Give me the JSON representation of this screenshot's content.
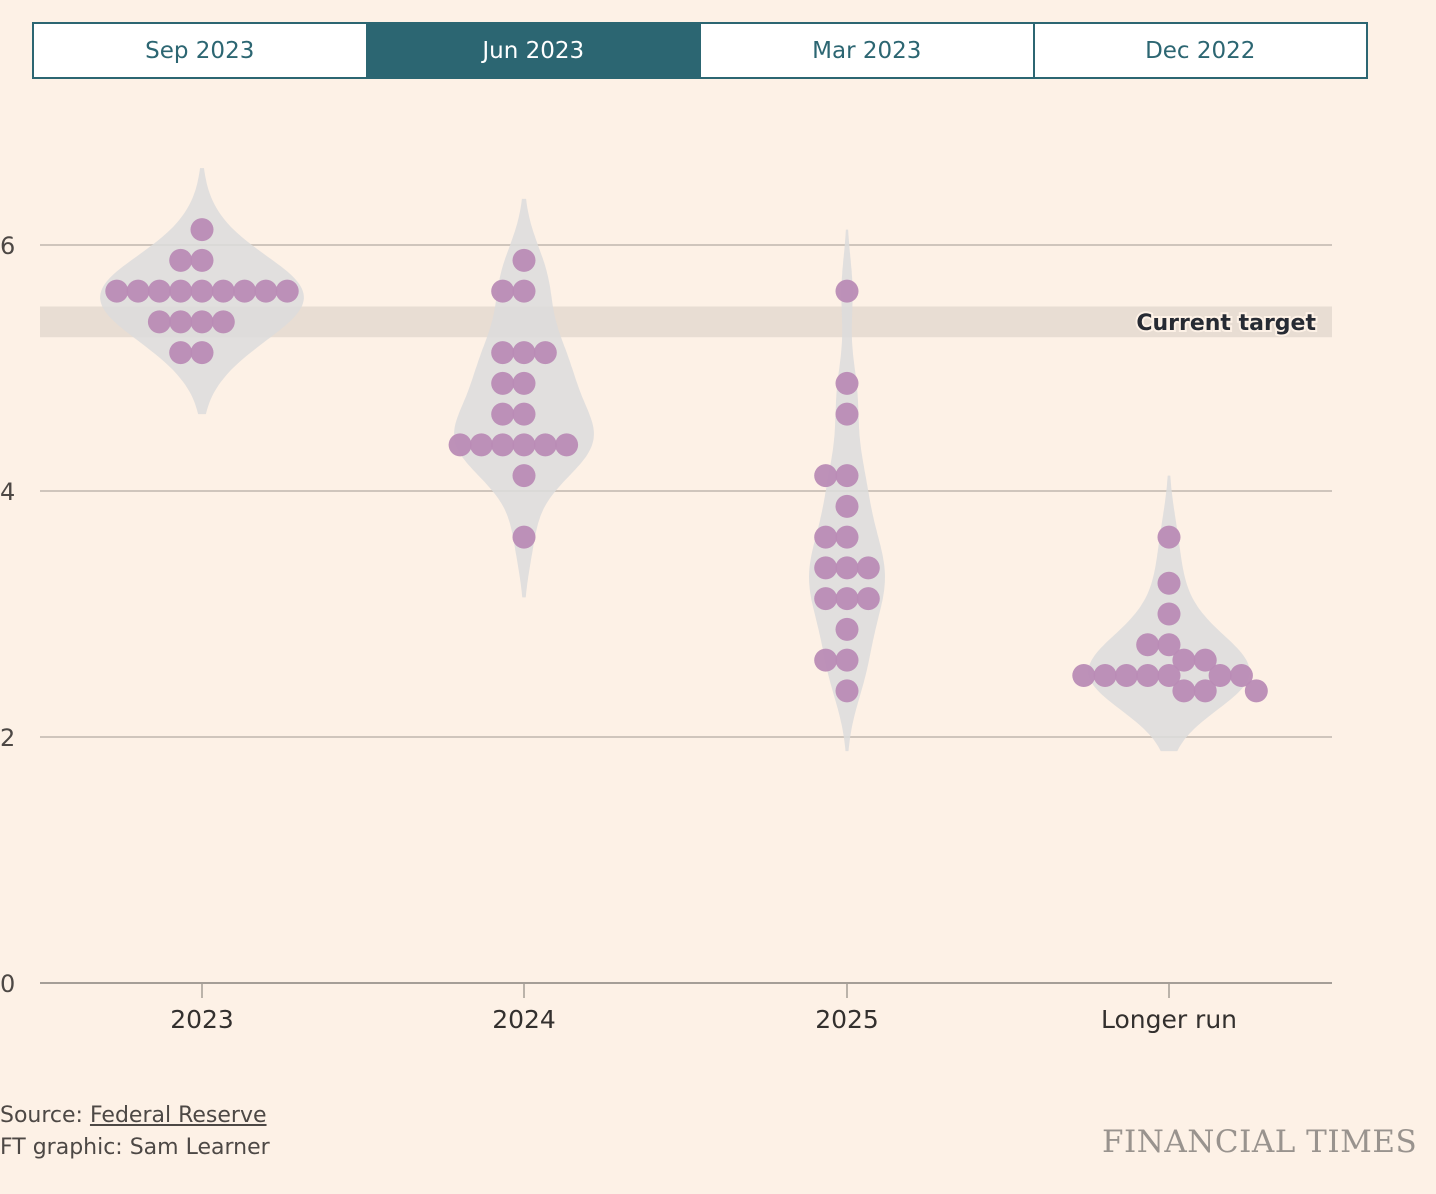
{
  "tabs": [
    {
      "label": "Sep 2023",
      "active": false
    },
    {
      "label": "Jun 2023",
      "active": true
    },
    {
      "label": "Mar 2023",
      "active": false
    },
    {
      "label": "Dec 2022",
      "active": false
    }
  ],
  "colors": {
    "accent": "#2c6672",
    "dot": "#b98bb5",
    "violin": "#dcdcdc",
    "target_band": "#e8ddd3",
    "background": "#fdf1e6"
  },
  "footer": {
    "source_prefix": "Source: ",
    "source_link": "Federal Reserve",
    "credit": "FT graphic: Sam Learner",
    "logo": "FINANCIAL TIMES"
  },
  "chart_data": {
    "type": "scatter",
    "subtype": "beeswarm-violin",
    "title": "",
    "xlabel": "",
    "ylabel": "",
    "categories": [
      "2023",
      "2024",
      "2025",
      "Longer run"
    ],
    "yticks": [
      0,
      2,
      4,
      6
    ],
    "ylim": [
      0,
      6.5
    ],
    "grid": true,
    "target_band": {
      "label": "Current target",
      "low": 5.25,
      "high": 5.5
    },
    "series": [
      {
        "name": "2023",
        "values": [
          6.125,
          5.875,
          5.875,
          5.625,
          5.625,
          5.625,
          5.625,
          5.625,
          5.625,
          5.625,
          5.625,
          5.625,
          5.375,
          5.375,
          5.375,
          5.375,
          5.125,
          5.125
        ]
      },
      {
        "name": "2024",
        "values": [
          5.875,
          5.625,
          5.625,
          5.125,
          5.125,
          5.125,
          4.875,
          4.875,
          4.625,
          4.625,
          4.375,
          4.375,
          4.375,
          4.375,
          4.375,
          4.375,
          4.125,
          3.625
        ]
      },
      {
        "name": "2025",
        "values": [
          5.625,
          4.875,
          4.625,
          4.125,
          4.125,
          3.875,
          3.625,
          3.625,
          3.375,
          3.375,
          3.375,
          3.125,
          3.125,
          3.125,
          2.875,
          2.625,
          2.625,
          2.375
        ]
      },
      {
        "name": "Longer run",
        "values": [
          3.625,
          3.25,
          3.0,
          2.75,
          2.75,
          2.625,
          2.625,
          2.5,
          2.5,
          2.5,
          2.5,
          2.5,
          2.5,
          2.5,
          2.375,
          2.375,
          2.375
        ]
      }
    ]
  }
}
